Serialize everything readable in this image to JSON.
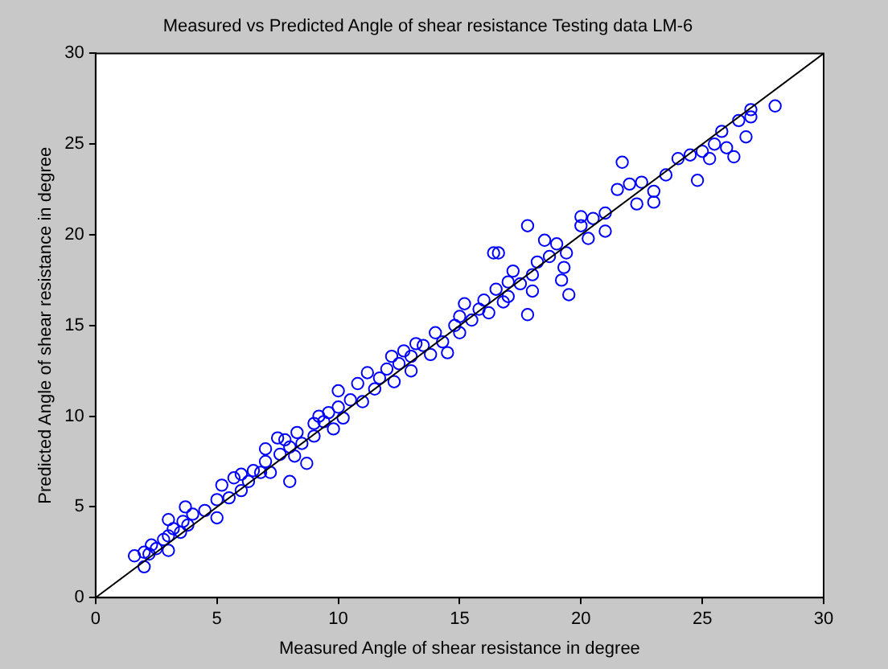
{
  "chart_data": {
    "type": "scatter",
    "title": "Measured vs Predicted Angle of shear resistance Testing data LM-6",
    "xlabel": "Measured Angle of shear resistance in degree",
    "ylabel": "Predicted Angle of shear resistance in degree",
    "xlim": [
      0,
      30
    ],
    "ylim": [
      0,
      30
    ],
    "xticks": [
      0,
      5,
      10,
      15,
      20,
      25,
      30
    ],
    "yticks": [
      0,
      5,
      10,
      15,
      20,
      25,
      30
    ],
    "grid": false,
    "legend": false,
    "series": [
      {
        "color": "#0000ff",
        "marker": "circle",
        "x": [
          1.6,
          2,
          2,
          2.2,
          2.3,
          2.5,
          2.8,
          3,
          3,
          3,
          3.2,
          3.5,
          3.6,
          3.8,
          4,
          3.7,
          4.5,
          5,
          5,
          5.2,
          5.5,
          5.7,
          6,
          6,
          6.3,
          6.5,
          6.8,
          7,
          7,
          7.2,
          7.5,
          7.6,
          7.8,
          8,
          8,
          8.2,
          8.3,
          8.5,
          8.7,
          9,
          9,
          9.2,
          9.4,
          9.6,
          9.8,
          10,
          10,
          10.2,
          10.5,
          10.8,
          11,
          11.2,
          11.5,
          11.7,
          12,
          12.2,
          12.3,
          12.5,
          12.7,
          13,
          13,
          13.2,
          13.5,
          13.8,
          14,
          14.3,
          14.5,
          14.8,
          15,
          15,
          15.2,
          15.5,
          15.8,
          16,
          16.2,
          16.4,
          16.6,
          16.5,
          16.8,
          17,
          17,
          17.2,
          17.5,
          17.8,
          17.8,
          18,
          18,
          18.2,
          18.5,
          18.7,
          19,
          19.2,
          19.3,
          19.4,
          19.5,
          20,
          20,
          20.3,
          20.5,
          21,
          21,
          21.5,
          21.7,
          22,
          22.3,
          22.5,
          23,
          23,
          23.5,
          24,
          24.5,
          24.8,
          25,
          25.3,
          25.5,
          25.8,
          26,
          26.3,
          26.5,
          26.8,
          27,
          27,
          28
        ],
        "values": [
          2.3,
          1.7,
          2.5,
          2.4,
          2.9,
          2.7,
          3.2,
          2.6,
          3.4,
          4.3,
          3.8,
          3.6,
          4.2,
          4,
          4.6,
          5,
          4.8,
          4.4,
          5.4,
          6.2,
          5.5,
          6.6,
          5.9,
          6.8,
          6.4,
          7,
          6.9,
          7.5,
          8.2,
          6.9,
          8.8,
          7.9,
          8.7,
          6.4,
          8.3,
          7.8,
          9.1,
          8.5,
          7.4,
          9.6,
          8.9,
          10,
          9.7,
          10.2,
          9.3,
          10.5,
          11.4,
          9.9,
          10.9,
          11.8,
          10.8,
          12.4,
          11.5,
          12.1,
          12.6,
          13.3,
          11.9,
          12.9,
          13.6,
          12.5,
          13.3,
          14,
          13.9,
          13.4,
          14.6,
          14.1,
          13.5,
          15,
          15.5,
          14.6,
          16.2,
          15.3,
          15.9,
          16.4,
          15.7,
          19,
          19,
          17,
          16.3,
          17.4,
          16.6,
          18,
          17.3,
          15.6,
          20.5,
          17.8,
          16.9,
          18.5,
          19.7,
          18.8,
          19.5,
          17.5,
          18.2,
          19,
          16.7,
          20.5,
          21,
          19.8,
          20.9,
          20.2,
          21.2,
          22.5,
          24,
          22.8,
          21.7,
          22.9,
          22.4,
          21.8,
          23.3,
          24.2,
          24.4,
          23,
          24.6,
          24.2,
          25,
          25.7,
          24.8,
          24.3,
          26.3,
          25.4,
          26.9,
          26.5,
          27.1
        ]
      },
      {
        "type": "line",
        "color": "#000000",
        "marker": "none",
        "x": [
          0,
          30
        ],
        "values": [
          0,
          30
        ]
      }
    ]
  }
}
